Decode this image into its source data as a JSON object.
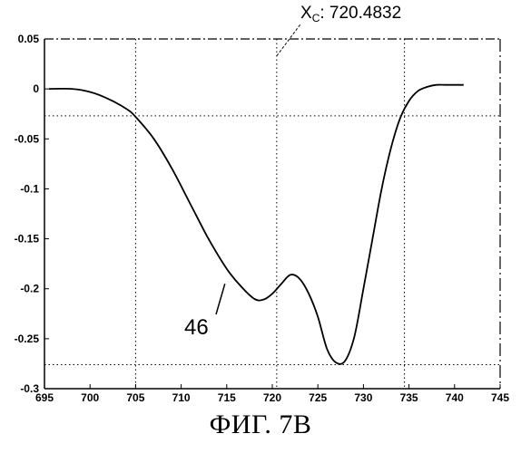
{
  "chart_data": {
    "type": "line",
    "title": "",
    "xlabel": "",
    "ylabel": "",
    "xlim": [
      695,
      745
    ],
    "ylim": [
      -0.3,
      0.05
    ],
    "x_ticks": [
      695,
      700,
      705,
      710,
      715,
      720,
      725,
      730,
      735,
      740,
      745
    ],
    "y_ticks": [
      0.05,
      0,
      -0.05,
      -0.1,
      -0.15,
      -0.2,
      -0.25,
      -0.3
    ],
    "x_tick_labels": [
      "695",
      "700",
      "705",
      "710",
      "715",
      "720",
      "725",
      "730",
      "735",
      "740",
      "745"
    ],
    "y_tick_labels": [
      "0.05",
      "0",
      "-0.05",
      "-0.1",
      "-0.15",
      "-0.2",
      "-0.25",
      "-0.3"
    ],
    "grid": false,
    "series": [
      {
        "x": [
          695.5,
          698,
          700,
          702,
          704,
          705,
          707,
          709,
          711,
          713,
          715,
          716.5,
          718,
          719,
          720,
          721,
          722,
          723,
          724,
          725,
          726,
          727,
          728,
          729,
          730,
          731,
          732,
          733,
          734,
          735,
          736,
          737,
          738,
          739,
          740,
          741
        ],
        "y": [
          0.0,
          0.0,
          -0.003,
          -0.01,
          -0.02,
          -0.028,
          -0.05,
          -0.08,
          -0.115,
          -0.15,
          -0.18,
          -0.197,
          -0.21,
          -0.211,
          -0.205,
          -0.195,
          -0.186,
          -0.19,
          -0.205,
          -0.228,
          -0.26,
          -0.274,
          -0.272,
          -0.248,
          -0.2,
          -0.15,
          -0.1,
          -0.06,
          -0.03,
          -0.012,
          -0.002,
          0.002,
          0.004,
          0.004,
          0.004,
          0.004
        ]
      }
    ],
    "reference_lines": {
      "vertical": [
        705,
        720.4832,
        734.5
      ],
      "horizontal": [
        -0.027,
        -0.276
      ]
    },
    "annotations": [
      {
        "text_main": "X",
        "text_sub": "C",
        "text_value": ": 720.4832"
      },
      {
        "text_main": "46"
      }
    ]
  },
  "caption": "ФИГ. 7B"
}
